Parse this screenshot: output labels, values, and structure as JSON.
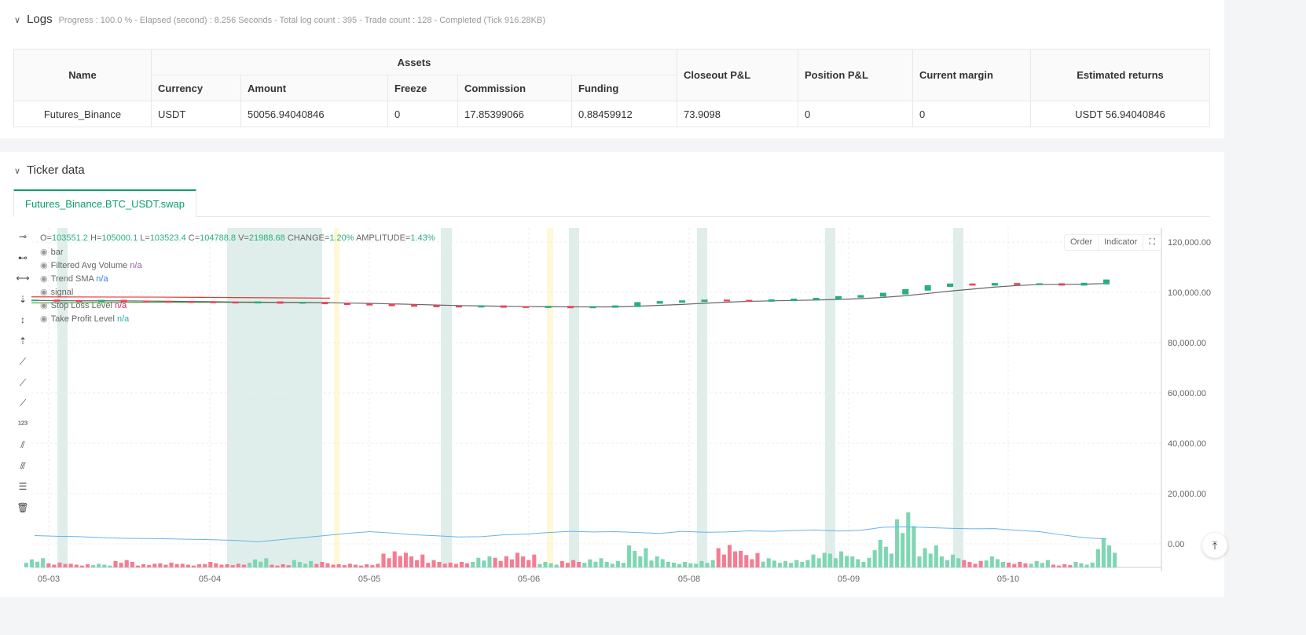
{
  "logs": {
    "title": "Logs",
    "summary": "Progress : 100.0 % - Elapsed (second) : 8.256  Seconds - Total log count : 395 - Trade count : 128 - Completed (Tick 916.28KB)",
    "headers": {
      "name": "Name",
      "assets": "Assets",
      "currency": "Currency",
      "amount": "Amount",
      "freeze": "Freeze",
      "commission": "Commission",
      "funding": "Funding",
      "closeout": "Closeout P&L",
      "position": "Position P&L",
      "margin": "Current margin",
      "returns": "Estimated returns"
    },
    "row": {
      "name": "Futures_Binance",
      "currency": "USDT",
      "amount": "50056.94040846",
      "freeze": "0",
      "commission": "17.85399066",
      "funding": "0.88459912",
      "closeout": "73.9098",
      "position": "0",
      "margin": "0",
      "returns": "USDT 56.94040846"
    }
  },
  "ticker": {
    "title": "Ticker data",
    "tab": "Futures_Binance.BTC_USDT.swap",
    "ohlc": {
      "o_label": "O=",
      "o": "103551.2",
      "h_label": "H=",
      "h": "105000.1",
      "l_label": "L=",
      "l": "103523.4",
      "c_label": "C=",
      "c": "104788.8",
      "v_label": "V=",
      "v": "21988.68",
      "change_label": "CHANGE=",
      "change": "1.20%",
      "amp_label": "AMPLITUDE=",
      "amp": "1.43%"
    },
    "legend": [
      {
        "label": "bar",
        "value": ""
      },
      {
        "label": "Filtered Avg Volume",
        "value": "n/a",
        "color": "#9b59b6"
      },
      {
        "label": "Trend SMA",
        "value": "n/a",
        "color": "#2f80ed"
      },
      {
        "label": "signal",
        "value": ""
      },
      {
        "label": "Stop Loss Level",
        "value": "n/a",
        "color": "#e0245e"
      },
      {
        "label": "Take Profit Level",
        "value": "n/a",
        "color": "#1fb5a5"
      }
    ],
    "buttons": {
      "order": "Order",
      "indicator": "Indicator"
    },
    "tools": [
      "horizontal-line",
      "horizontal-ray",
      "horizontal-segment",
      "vertical-line",
      "vertical-segment",
      "vertical-ray",
      "trend-line",
      "ray",
      "segment",
      "price-line",
      "parallel-channel",
      "multi-channel",
      "fibonacci",
      "trash"
    ]
  },
  "chart_data": {
    "type": "candlestick",
    "yticks": [
      "120,000.00",
      "100,000.00",
      "80,000.00",
      "60,000.00",
      "40,000.00",
      "20,000.00",
      "0.00"
    ],
    "ylim": [
      0,
      120000
    ],
    "xticks": [
      "05-03",
      "05-04",
      "05-05",
      "05-06",
      "05-08",
      "05-09",
      "05-10"
    ],
    "close": [
      96800,
      96600,
      96500,
      96700,
      96400,
      96300,
      96200,
      96100,
      96000,
      95900,
      96100,
      95800,
      95900,
      95600,
      95300,
      95100,
      94800,
      94600,
      94400,
      94300,
      94500,
      94200,
      94100,
      94300,
      94000,
      94200,
      94500,
      95800,
      96200,
      96500,
      96800,
      96700,
      96600,
      96900,
      97200,
      97500,
      98200,
      98600,
      99500,
      101000,
      102500,
      103200,
      103000,
      103400,
      103200,
      103300,
      103000,
      103500,
      104800
    ],
    "volume": [
      5,
      3,
      2,
      2,
      4,
      2,
      3,
      2,
      3,
      2,
      5,
      2,
      4,
      3,
      2,
      2,
      10,
      8,
      4,
      3,
      6,
      7,
      8,
      3,
      4,
      5,
      4,
      12,
      6,
      3,
      4,
      14,
      9,
      5,
      4,
      8,
      10,
      6,
      15,
      30,
      12,
      8,
      4,
      6,
      3,
      4,
      2,
      3,
      16
    ],
    "avg_volume": [
      6000,
      5500,
      5200,
      4500,
      4000,
      3800,
      3600,
      3300,
      3000,
      2500,
      1500,
      3000,
      4500,
      6000,
      7500,
      8800,
      7800,
      6500,
      5800,
      5000,
      5200,
      6500,
      7000,
      8200,
      9000,
      8600,
      8800,
      8200,
      7500,
      9000,
      8400,
      8600,
      9400,
      9000,
      9600,
      10000,
      9200,
      9800,
      12000,
      12300,
      11800,
      11200,
      10900,
      11000,
      9800,
      8800,
      6500,
      4500,
      3500
    ],
    "colors": {
      "up": "#26b07a",
      "down": "#f0425e",
      "sma": "#666666",
      "stop": "#e53935",
      "take": "#43a047",
      "avgvol": "#66b3f0",
      "band": "#dfeeea",
      "band_alt": "#fff8d6"
    }
  }
}
